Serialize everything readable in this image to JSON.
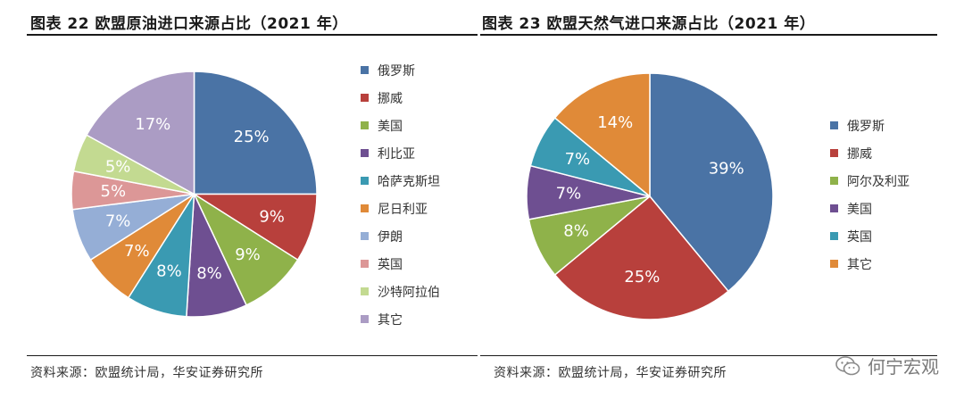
{
  "left": {
    "title": "图表 22 欧盟原油进口来源占比（2021 年）",
    "source": "资料来源：欧盟统计局，华安证券研究所"
  },
  "right": {
    "title": "图表 23 欧盟天然气进口来源占比（2021 年）",
    "source": "资料来源：欧盟统计局，华安证券研究所"
  },
  "watermark": {
    "text": "何宁宏观",
    "icon": "wechat-icon"
  },
  "chart_data": [
    {
      "type": "pie",
      "title": "图表 22 欧盟原油进口来源占比（2021 年）",
      "categories": [
        "俄罗斯",
        "挪威",
        "美国",
        "利比亚",
        "哈萨克斯坦",
        "尼日利亚",
        "伊朗",
        "英国",
        "沙特阿拉伯",
        "其它"
      ],
      "values": [
        25,
        9,
        9,
        8,
        8,
        7,
        7,
        5,
        5,
        17
      ],
      "labels": [
        "25%",
        "9%",
        "9%",
        "8%",
        "8%",
        "7%",
        "7%",
        "5%",
        "5%",
        "17%"
      ],
      "colors": [
        "#4a73a5",
        "#b8403c",
        "#8fb24a",
        "#6e4f91",
        "#3a9ab2",
        "#e08a38",
        "#95aed6",
        "#dc9797",
        "#c3da91",
        "#ab9cc4"
      ],
      "legend_position": "right"
    },
    {
      "type": "pie",
      "title": "图表 23 欧盟天然气进口来源占比（2021 年）",
      "categories": [
        "俄罗斯",
        "挪威",
        "阿尔及利亚",
        "美国",
        "英国",
        "其它"
      ],
      "values": [
        39,
        25,
        8,
        7,
        7,
        14
      ],
      "labels": [
        "39%",
        "25%",
        "8%",
        "7%",
        "7%",
        "14%"
      ],
      "colors": [
        "#4a73a5",
        "#b8403c",
        "#8fb24a",
        "#6e4f91",
        "#3a9ab2",
        "#e08a38"
      ],
      "legend_position": "right"
    }
  ]
}
